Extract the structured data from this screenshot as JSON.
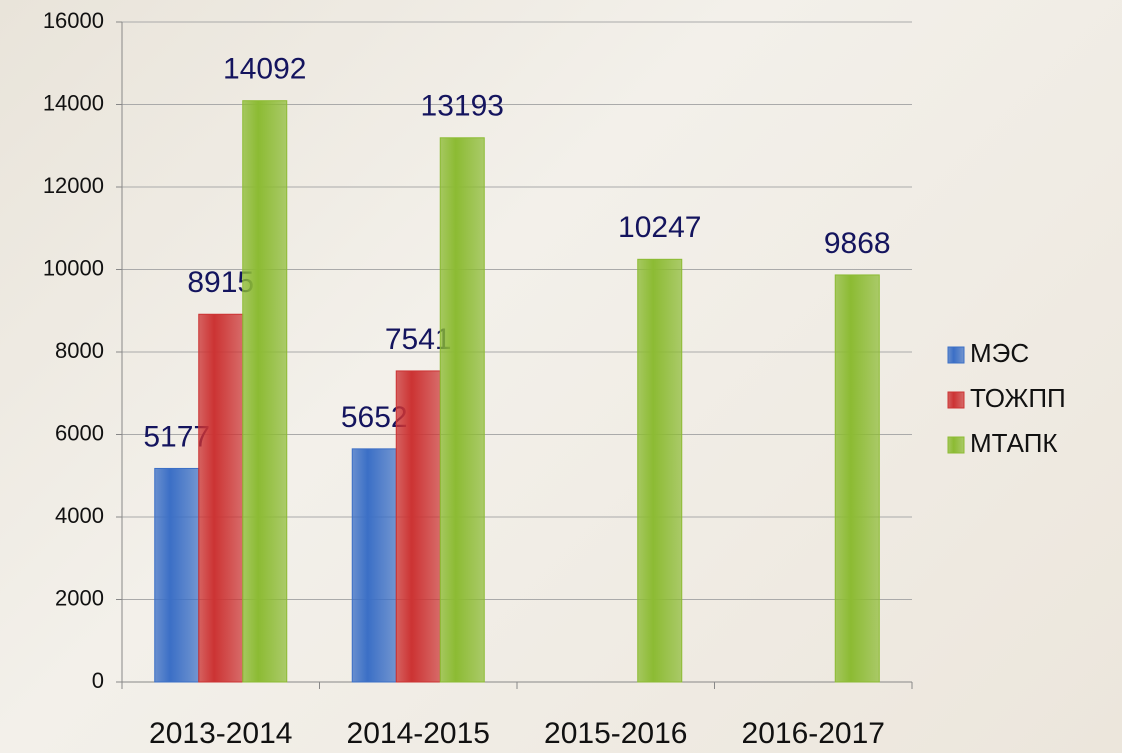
{
  "chart_data": {
    "type": "bar",
    "categories": [
      "2013-2014",
      "2014-2015",
      "2015-2016",
      "2016-2017"
    ],
    "series": [
      {
        "name": "МЭС",
        "color": "#3b6fc6",
        "values": [
          5177,
          5652,
          null,
          null
        ]
      },
      {
        "name": "ТОЖПП",
        "color": "#cc3333",
        "values": [
          8915,
          7541,
          null,
          null
        ]
      },
      {
        "name": "МТАПК",
        "color": "#8cbb33",
        "values": [
          14092,
          13193,
          10247,
          9868
        ]
      }
    ],
    "ylim": [
      0,
      16000
    ],
    "yticks": [
      0,
      2000,
      4000,
      6000,
      8000,
      10000,
      12000,
      14000,
      16000
    ],
    "grid": true,
    "legend": "right"
  }
}
